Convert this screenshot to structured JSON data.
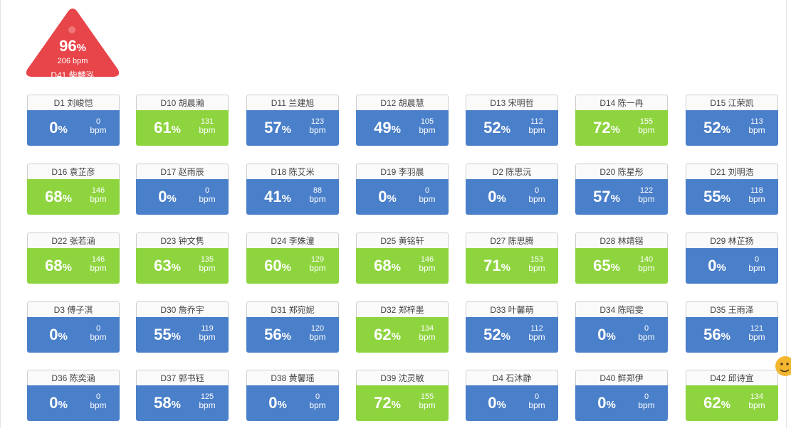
{
  "alert": {
    "percent": "96",
    "unit": "%",
    "bpm": "206 bpm",
    "name": "D41 柴麟泓",
    "color": "#e8454a"
  },
  "colors": {
    "blue": "#4a7fca",
    "green": "#8ed43f"
  },
  "bpm_label": "bpm",
  "percent_unit": "%",
  "cards": [
    {
      "name": "D1 刘峻恺",
      "percent": "0",
      "bpm": "0",
      "color": "blue"
    },
    {
      "name": "D10 胡晨瀚",
      "percent": "61",
      "bpm": "131",
      "color": "green"
    },
    {
      "name": "D11 兰建旭",
      "percent": "57",
      "bpm": "123",
      "color": "blue"
    },
    {
      "name": "D12 胡晨慧",
      "percent": "49",
      "bpm": "105",
      "color": "blue"
    },
    {
      "name": "D13 宋明哲",
      "percent": "52",
      "bpm": "112",
      "color": "blue"
    },
    {
      "name": "D14 陈一冉",
      "percent": "72",
      "bpm": "155",
      "color": "green"
    },
    {
      "name": "D15 江荣凯",
      "percent": "52",
      "bpm": "113",
      "color": "blue"
    },
    {
      "name": "D16 袁芷彦",
      "percent": "68",
      "bpm": "146",
      "color": "green"
    },
    {
      "name": "D17 赵雨辰",
      "percent": "0",
      "bpm": "0",
      "color": "blue"
    },
    {
      "name": "D18 陈艾米",
      "percent": "41",
      "bpm": "88",
      "color": "blue"
    },
    {
      "name": "D19 李羽晨",
      "percent": "0",
      "bpm": "0",
      "color": "blue"
    },
    {
      "name": "D2 陈思沅",
      "percent": "0",
      "bpm": "0",
      "color": "blue"
    },
    {
      "name": "D20 陈星彤",
      "percent": "57",
      "bpm": "122",
      "color": "blue"
    },
    {
      "name": "D21 刘明浩",
      "percent": "55",
      "bpm": "118",
      "color": "blue"
    },
    {
      "name": "D22 张若涵",
      "percent": "68",
      "bpm": "146",
      "color": "green"
    },
    {
      "name": "D23 钟文隽",
      "percent": "63",
      "bpm": "135",
      "color": "green"
    },
    {
      "name": "D24 李姝潼",
      "percent": "60",
      "bpm": "129",
      "color": "green"
    },
    {
      "name": "D25 黄铭轩",
      "percent": "68",
      "bpm": "146",
      "color": "green"
    },
    {
      "name": "D27 陈思腾",
      "percent": "71",
      "bpm": "153",
      "color": "green"
    },
    {
      "name": "D28 林靖锴",
      "percent": "65",
      "bpm": "140",
      "color": "green"
    },
    {
      "name": "D29 林芷扬",
      "percent": "0",
      "bpm": "0",
      "color": "blue"
    },
    {
      "name": "D3 傅子淇",
      "percent": "0",
      "bpm": "0",
      "color": "blue"
    },
    {
      "name": "D30 詹乔宇",
      "percent": "55",
      "bpm": "119",
      "color": "blue"
    },
    {
      "name": "D31 郑宛妮",
      "percent": "56",
      "bpm": "120",
      "color": "blue"
    },
    {
      "name": "D32 郑梓墨",
      "percent": "62",
      "bpm": "134",
      "color": "green"
    },
    {
      "name": "D33 叶馨萌",
      "percent": "52",
      "bpm": "112",
      "color": "blue"
    },
    {
      "name": "D34 陈昭雯",
      "percent": "0",
      "bpm": "0",
      "color": "blue"
    },
    {
      "name": "D35 王雨泽",
      "percent": "56",
      "bpm": "121",
      "color": "blue"
    },
    {
      "name": "D36 陈奕涵",
      "percent": "0",
      "bpm": "0",
      "color": "blue"
    },
    {
      "name": "D37 郭书钰",
      "percent": "58",
      "bpm": "125",
      "color": "blue"
    },
    {
      "name": "D38 黄馨瑶",
      "percent": "0",
      "bpm": "0",
      "color": "blue"
    },
    {
      "name": "D39 沈灵敏",
      "percent": "72",
      "bpm": "155",
      "color": "green"
    },
    {
      "name": "D4 石沐静",
      "percent": "0",
      "bpm": "0",
      "color": "blue"
    },
    {
      "name": "D40 鲜郑伊",
      "percent": "0",
      "bpm": "0",
      "color": "blue"
    },
    {
      "name": "D42 邱诗宣",
      "percent": "62",
      "bpm": "134",
      "color": "green"
    }
  ]
}
